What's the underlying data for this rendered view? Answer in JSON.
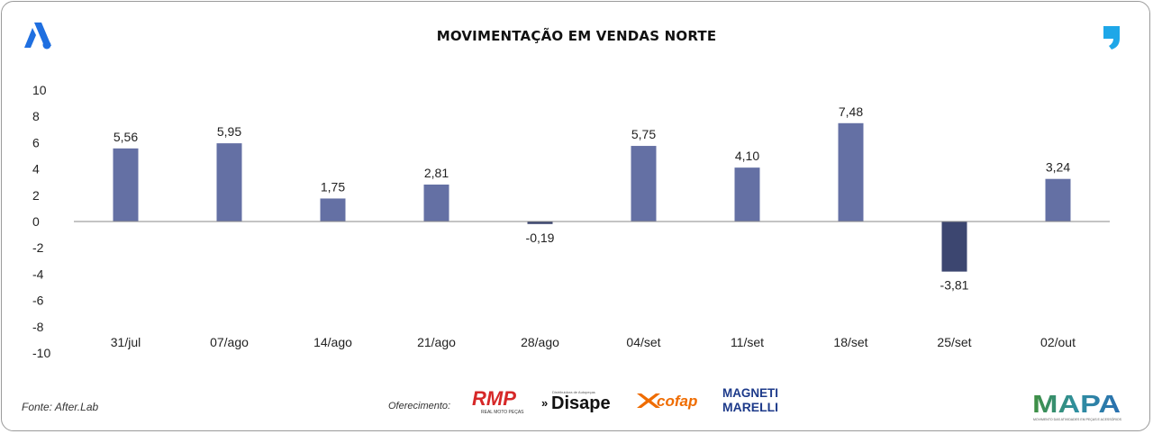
{
  "header": {
    "title": "MOVIMENTAÇÃO EM VENDAS NORTE"
  },
  "footer": {
    "source": "Fonte: After.Lab",
    "sponsor_label": "Oferecimento:",
    "sponsors": {
      "rmp": "RMP",
      "rmp_sub": "REAL MOTO PEÇAS",
      "disape": "Disape",
      "disape_sub": "Distribuidora de Autopeças",
      "cofap": "cofap",
      "magneti_top": "MAGNETI",
      "magneti_bottom": "MARELLI",
      "mapa": "MAPA",
      "mapa_sub": "MOVIMENTO DAS ATIVIDADES EM PEÇAS E ACESSÓRIOS"
    }
  },
  "colors": {
    "bar_positive": "#6470a4",
    "bar_negative": "#3c4670",
    "brand_blue": "#1f6fe0",
    "quote_blue": "#1ea7e8"
  },
  "chart_data": {
    "type": "bar",
    "title": "MOVIMENTAÇÃO EM VENDAS NORTE",
    "xlabel": "",
    "ylabel": "",
    "ylim": [
      -10,
      10
    ],
    "yticks": [
      10,
      8,
      6,
      4,
      2,
      0,
      -2,
      -4,
      -6,
      -8,
      -10
    ],
    "categories": [
      "31/jul",
      "07/ago",
      "14/ago",
      "21/ago",
      "28/ago",
      "04/set",
      "11/set",
      "18/set",
      "25/set",
      "02/out"
    ],
    "values": [
      5.56,
      5.95,
      1.75,
      2.81,
      -0.19,
      5.75,
      4.1,
      7.48,
      -3.81,
      3.24
    ],
    "labels": [
      "5,56",
      "5,95",
      "1,75",
      "2,81",
      "-0,19",
      "5,75",
      "4,10",
      "7,48",
      "-3,81",
      "3,24"
    ],
    "grid": false,
    "legend": "none"
  }
}
